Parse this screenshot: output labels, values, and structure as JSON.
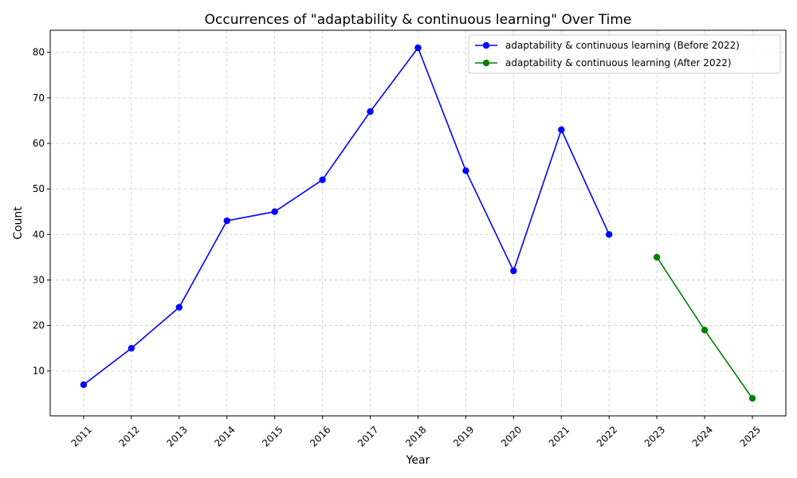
{
  "chart_data": {
    "type": "line",
    "title": "Occurrences of \"adaptability & continuous learning\" Over Time",
    "xlabel": "Year",
    "ylabel": "Count",
    "categories": [
      "2011",
      "2012",
      "2013",
      "2014",
      "2015",
      "2016",
      "2017",
      "2018",
      "2019",
      "2020",
      "2021",
      "2022",
      "2023",
      "2024",
      "2025"
    ],
    "y_ticks": [
      10,
      20,
      30,
      40,
      50,
      60,
      70,
      80
    ],
    "ylim": [
      0.15,
      84.85
    ],
    "grid": true,
    "legend_position": "top-right",
    "series": [
      {
        "name": "adaptability & continuous learning (Before 2022)",
        "color": "#0000ff",
        "x": [
          "2011",
          "2012",
          "2013",
          "2014",
          "2015",
          "2016",
          "2017",
          "2018",
          "2019",
          "2020",
          "2021",
          "2022"
        ],
        "values": [
          7,
          15,
          24,
          43,
          45,
          52,
          67,
          81,
          54,
          32,
          63,
          40
        ]
      },
      {
        "name": "adaptability & continuous learning (After 2022)",
        "color": "#008000",
        "x": [
          "2023",
          "2024",
          "2025"
        ],
        "values": [
          35,
          19,
          4
        ]
      }
    ]
  }
}
